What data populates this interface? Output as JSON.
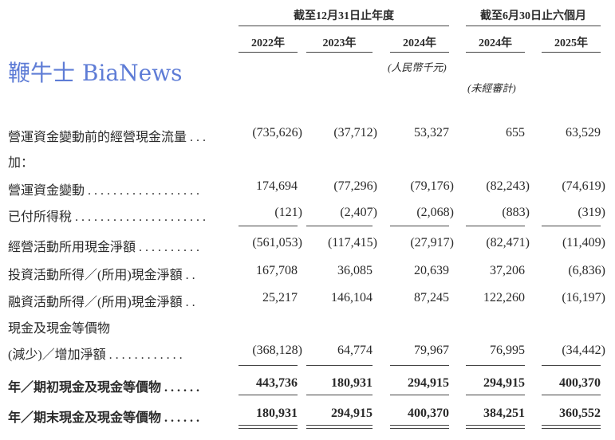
{
  "header": {
    "group_annual": "截至12月31日止年度",
    "group_interim": "截至6月30日止六個月",
    "years": [
      "2022年",
      "2023年",
      "2024年",
      "2024年",
      "2025年"
    ],
    "unit": "(人民幣千元)",
    "unaudited": "(未經審計)"
  },
  "rows": [
    {
      "label": "營運資金變動前的經營現金流量 . . .",
      "values": [
        "(735,626)",
        "(37,712)",
        "53,327",
        "655",
        "63,529"
      ]
    },
    {
      "label": "加：",
      "values": []
    },
    {
      "label": "營運資金變動 . . . . . . . . . . . . . . . . . .",
      "values": [
        "174,694",
        "(77,296)",
        "(79,176)",
        "(82,243)",
        "(74,619)"
      ]
    },
    {
      "label": "已付所得稅 . . . . . . . . . . . . . . . . . . . . .",
      "values": [
        "(121)",
        "(2,407)",
        "(2,068)",
        "(883)",
        "(319)"
      ]
    },
    {
      "label": "經營活動所用現金淨額 . . . . . . . . . .",
      "values": [
        "(561,053)",
        "(117,415)",
        "(27,917)",
        "(82,471)",
        "(11,409)"
      ]
    },
    {
      "label": "投資活動所得／(所用)現金淨額 . .",
      "values": [
        "167,708",
        "36,085",
        "20,639",
        "37,206",
        "(6,836)"
      ]
    },
    {
      "label": "融資活動所得／(所用)現金淨額 . .",
      "values": [
        "25,217",
        "146,104",
        "87,245",
        "122,260",
        "(16,197)"
      ]
    },
    {
      "label": "現金及現金等價物",
      "values": []
    },
    {
      "label": "  (減少)／增加淨額 . . . . . . . . . . . .",
      "values": [
        "(368,128)",
        "64,774",
        "79,967",
        "76,995",
        "(34,442)"
      ]
    },
    {
      "label": "年／期初現金及現金等價物 . . . . . .",
      "values": [
        "443,736",
        "180,931",
        "294,915",
        "294,915",
        "400,370"
      ],
      "bold": true
    },
    {
      "label": "年／期末現金及現金等價物 . . . . . .",
      "values": [
        "180,931",
        "294,915",
        "400,370",
        "384,251",
        "360,552"
      ],
      "bold": true
    }
  ],
  "watermark": "鞭牛士 BiaNews"
}
